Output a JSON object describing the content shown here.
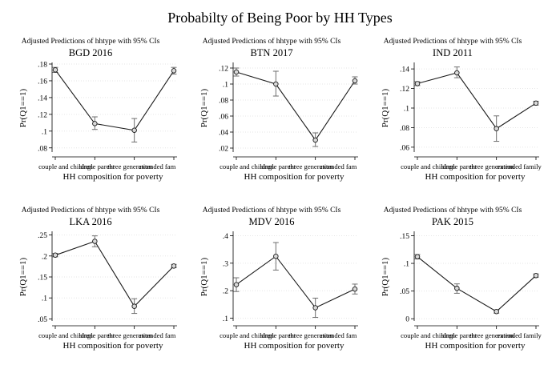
{
  "title": "Probabilty of Being Poor by HH Types",
  "categories": [
    "couple and children",
    "single parent",
    "three generation",
    "extended family"
  ],
  "chart_data": [
    {
      "type": "line",
      "subtitle": "Adjusted Predictions of hhtype with 95% CIs",
      "title": "BGD 2016",
      "xlabel": "HH composition for poverty",
      "ylabel": "Pr(Q1==1)",
      "ylim": [
        0.075,
        0.18
      ],
      "yticks": [
        0.08,
        0.1,
        0.12,
        0.14,
        0.16,
        0.18
      ],
      "ytick_labels": [
        ".08",
        ".1",
        ".12",
        ".14",
        ".16",
        ".18"
      ],
      "categories": [
        "couple and children",
        "single parent",
        "three generation",
        "extended fam"
      ],
      "values": [
        0.173,
        0.109,
        0.101,
        0.172
      ],
      "ci_low": [
        0.17,
        0.102,
        0.087,
        0.168
      ],
      "ci_high": [
        0.176,
        0.117,
        0.115,
        0.176
      ]
    },
    {
      "type": "line",
      "subtitle": "Adjusted Predictions of hhtype with 95% CIs",
      "title": "BTN 2017",
      "xlabel": "HH composition for poverty",
      "ylabel": "Pr(Q1==1)",
      "ylim": [
        0.015,
        0.125
      ],
      "yticks": [
        0.02,
        0.04,
        0.06,
        0.08,
        0.1,
        0.12
      ],
      "ytick_labels": [
        ".02",
        ".04",
        ".06",
        ".08",
        ".1",
        ".12"
      ],
      "categories": [
        "couple and children",
        "single parent",
        "three generation",
        "extended fam"
      ],
      "values": [
        0.115,
        0.1,
        0.03,
        0.104
      ],
      "ci_low": [
        0.11,
        0.085,
        0.022,
        0.1
      ],
      "ci_high": [
        0.12,
        0.116,
        0.039,
        0.109
      ]
    },
    {
      "type": "line",
      "subtitle": "Adjusted Predictions of hhtype with 95% CIs",
      "title": "IND 2011",
      "xlabel": "HH composition for poverty",
      "ylabel": "Pr(Q1==1)",
      "ylim": [
        0.055,
        0.145
      ],
      "yticks": [
        0.06,
        0.08,
        0.1,
        0.12,
        0.14
      ],
      "ytick_labels": [
        ".06",
        ".08",
        ".1",
        ".12",
        ".14"
      ],
      "categories": [
        "couple and children",
        "single parent",
        "three generation",
        "extended family"
      ],
      "values": [
        0.125,
        0.136,
        0.079,
        0.105
      ],
      "ci_low": [
        0.123,
        0.131,
        0.066,
        0.103
      ],
      "ci_high": [
        0.127,
        0.142,
        0.092,
        0.107
      ]
    },
    {
      "type": "line",
      "subtitle": "Adjusted Predictions of hhtype with 95% CIs",
      "title": "LKA 2016",
      "xlabel": "HH composition for poverty",
      "ylabel": "Pr(Q1==1)",
      "ylim": [
        0.045,
        0.255
      ],
      "yticks": [
        0.05,
        0.1,
        0.15,
        0.2,
        0.25
      ],
      "ytick_labels": [
        ".05",
        ".1",
        ".15",
        ".2",
        ".25"
      ],
      "categories": [
        "couple and children",
        "single parent",
        "three generation",
        "extended fam"
      ],
      "values": [
        0.202,
        0.235,
        0.08,
        0.176
      ],
      "ci_low": [
        0.198,
        0.222,
        0.063,
        0.172
      ],
      "ci_high": [
        0.206,
        0.248,
        0.098,
        0.18
      ]
    },
    {
      "type": "line",
      "subtitle": "Adjusted Predictions of hhtype with 95% CIs",
      "title": "MDV 2016",
      "xlabel": "HH composition for poverty",
      "ylabel": "Pr(Q1==1)",
      "ylim": [
        0.09,
        0.41
      ],
      "yticks": [
        0.1,
        0.2,
        0.3,
        0.4
      ],
      "ytick_labels": [
        ".1",
        ".2",
        ".3",
        ".4"
      ],
      "categories": [
        "couple and children",
        "single parent",
        "three generation",
        "extended fam"
      ],
      "values": [
        0.222,
        0.325,
        0.138,
        0.206
      ],
      "ci_low": [
        0.197,
        0.275,
        0.103,
        0.188
      ],
      "ci_high": [
        0.247,
        0.375,
        0.173,
        0.224
      ]
    },
    {
      "type": "line",
      "subtitle": "Adjusted Predictions of hhtype with 95% CIs",
      "title": "PAK 2015",
      "xlabel": "HH composition for poverty",
      "ylabel": "Pr(Q1==1)",
      "ylim": [
        -0.004,
        0.155
      ],
      "yticks": [
        0,
        0.05,
        0.1,
        0.15
      ],
      "ytick_labels": [
        "0",
        ".05",
        ".1",
        ".15"
      ],
      "categories": [
        "couple and children",
        "single parent",
        "three generation",
        "extended family"
      ],
      "values": [
        0.112,
        0.055,
        0.013,
        0.078
      ],
      "ci_low": [
        0.108,
        0.046,
        0.01,
        0.075
      ],
      "ci_high": [
        0.116,
        0.063,
        0.016,
        0.081
      ]
    }
  ]
}
